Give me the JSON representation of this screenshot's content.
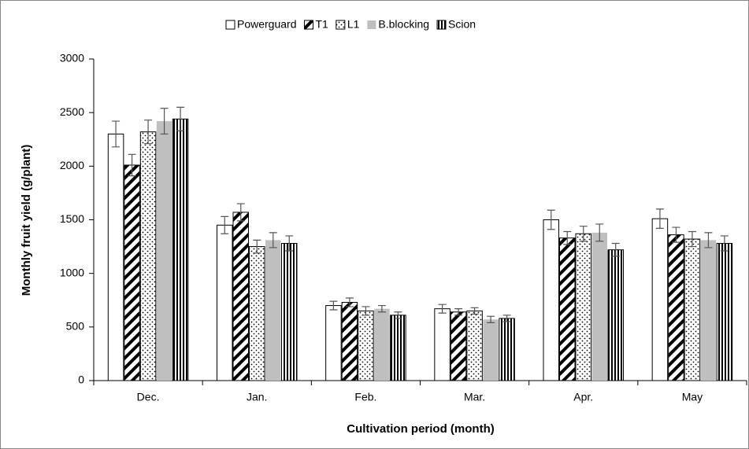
{
  "chart_data": {
    "type": "bar",
    "x_label": "Cultivation period (month)",
    "y_label": "Monthly fruit yield (g/plant)",
    "categories": [
      "Dec.",
      "Jan.",
      "Feb.",
      "Mar.",
      "Apr.",
      "May"
    ],
    "series": [
      {
        "name": "Powerguard",
        "color": "#ffffff",
        "pattern": "none",
        "values": [
          2300,
          1450,
          700,
          670,
          1500,
          1510
        ],
        "errors": [
          120,
          80,
          40,
          40,
          90,
          90
        ]
      },
      {
        "name": "T1",
        "color": "#000000",
        "pattern": "diagonal",
        "values": [
          2010,
          1570,
          730,
          640,
          1330,
          1360
        ],
        "errors": [
          100,
          80,
          40,
          30,
          60,
          70
        ]
      },
      {
        "name": "L1",
        "color": "#000000",
        "pattern": "dots",
        "values": [
          2320,
          1250,
          650,
          650,
          1370,
          1320
        ],
        "errors": [
          110,
          60,
          40,
          30,
          70,
          70
        ]
      },
      {
        "name": "B.blocking",
        "color": "#bfbfbf",
        "pattern": "solid",
        "values": [
          2420,
          1310,
          670,
          570,
          1380,
          1310
        ],
        "errors": [
          120,
          70,
          30,
          30,
          80,
          70
        ]
      },
      {
        "name": "Scion",
        "color": "#000000",
        "pattern": "vertical",
        "values": [
          2440,
          1280,
          610,
          580,
          1220,
          1280
        ],
        "errors": [
          110,
          70,
          30,
          30,
          60,
          70
        ]
      }
    ],
    "ylim": [
      0,
      3000
    ],
    "yticks": [
      0,
      500,
      1000,
      1500,
      2000,
      2500,
      3000
    ],
    "grid": false,
    "legend": "top"
  }
}
